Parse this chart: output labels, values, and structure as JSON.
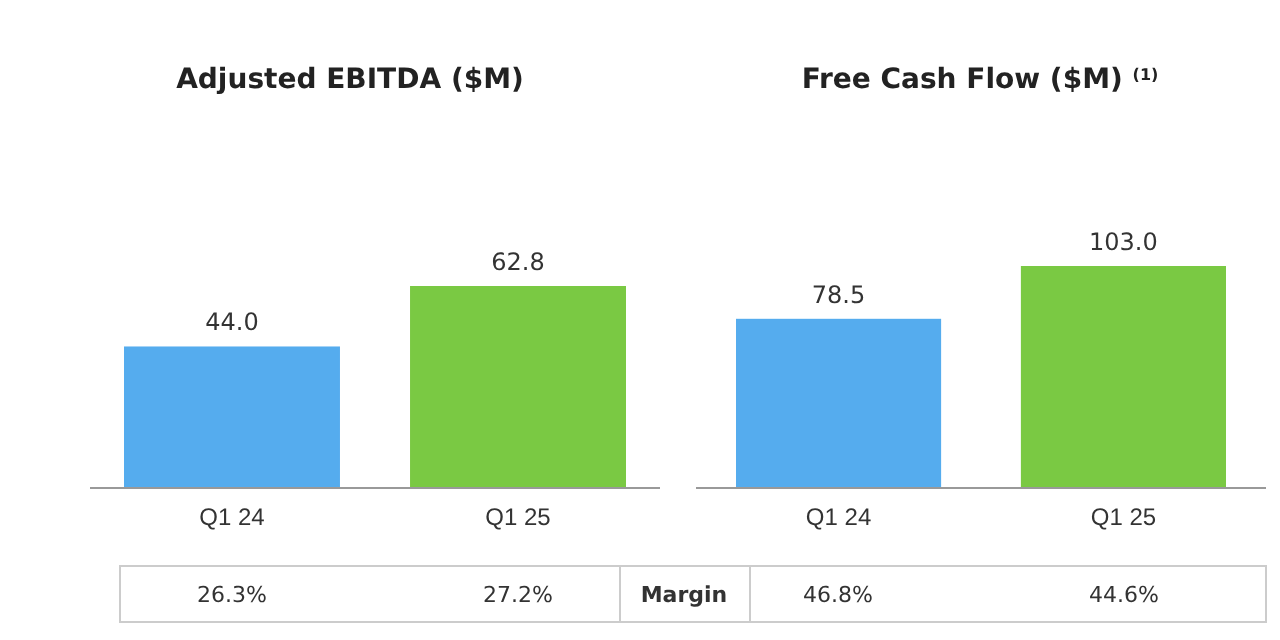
{
  "chart_data": [
    {
      "type": "bar",
      "title": "Adjusted EBITDA ($M)",
      "categories": [
        "Q1 24",
        "Q1 25"
      ],
      "values": [
        44.0,
        62.8
      ],
      "colors": [
        "#55acee",
        "#7ac943"
      ],
      "value_labels": [
        "44.0",
        "62.8"
      ],
      "annotations": [
        "26.3%",
        "27.2%",
        "Margin"
      ]
    },
    {
      "type": "bar",
      "title": "Free Cash Flow ($M) $^{(1)}$",
      "categories": [
        "Q1 24",
        "Q1 25"
      ],
      "values": [
        78.5,
        103.0
      ],
      "colors": [
        "#55acee",
        "#7ac943"
      ],
      "value_labels": [
        "78.5",
        "103.0"
      ],
      "annotations": [
        "46.8%",
        "44.6%"
      ]
    }
  ]
}
